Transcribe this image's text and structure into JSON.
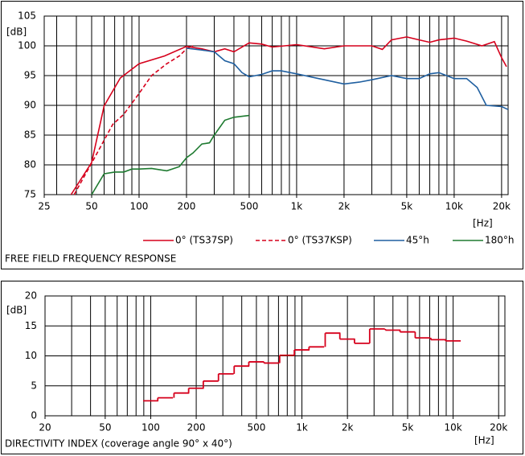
{
  "chart_data": [
    {
      "type": "line",
      "title": "FREE FIELD FREQUENCY RESPONSE",
      "ylabel": "[dB]",
      "xlabel": "[Hz]",
      "xscale": "log",
      "xlim": [
        25,
        22000
      ],
      "ylim": [
        75,
        105
      ],
      "xticks": [
        25,
        50,
        100,
        200,
        500,
        {
          "value": 1000,
          "label": "1k"
        },
        {
          "value": 2000,
          "label": "2k"
        },
        {
          "value": 5000,
          "label": "5k"
        },
        {
          "value": 10000,
          "label": "10k"
        },
        {
          "value": 20000,
          "label": "20k"
        }
      ],
      "xgrid": [
        30,
        40,
        50,
        60,
        70,
        80,
        90,
        100,
        200,
        300,
        400,
        500,
        600,
        700,
        800,
        900,
        1000,
        2000,
        3000,
        4000,
        5000,
        6000,
        7000,
        8000,
        9000,
        10000,
        20000
      ],
      "yticks": [
        75,
        80,
        85,
        90,
        95,
        100,
        105
      ],
      "grid": true,
      "series": [
        {
          "name": "0° (TS37SP)",
          "color": "#d6001c",
          "dash": false,
          "x": [
            37,
            50,
            60,
            76,
            100,
            145,
            200,
            250,
            300,
            350,
            400,
            500,
            600,
            700,
            1000,
            1500,
            2000,
            3000,
            3500,
            4000,
            5000,
            6000,
            7000,
            8000,
            10000,
            12000,
            15000,
            18000,
            20000,
            21500
          ],
          "values": [
            75,
            80.4,
            89.9,
            94.6,
            97,
            98.3,
            99.9,
            99.5,
            99,
            99.5,
            99,
            100.5,
            100.3,
            99.8,
            100.2,
            99.5,
            100,
            100,
            99.4,
            101,
            101.5,
            101,
            100.6,
            101,
            101.3,
            100.8,
            100,
            100.7,
            98,
            96.5
          ]
        },
        {
          "name": "0° (TS37KSP)",
          "color": "#d6001c",
          "dash": true,
          "x": [
            38.7,
            50,
            68,
            80,
            100,
            120,
            150,
            180,
            200,
            220
          ],
          "values": [
            75,
            80.3,
            86.8,
            88.5,
            92,
            95,
            97,
            98.3,
            99.5,
            100
          ]
        },
        {
          "name": "45°h",
          "color": "#1f5fa0",
          "dash": false,
          "x": [
            200,
            250,
            300,
            350,
            400,
            450,
            500,
            600,
            700,
            800,
            1000,
            1500,
            2000,
            2500,
            3000,
            4000,
            5000,
            6000,
            7000,
            8000,
            10000,
            12000,
            14000,
            16000,
            20000,
            22000
          ],
          "values": [
            99.6,
            99.3,
            99,
            97.5,
            97,
            95.5,
            94.8,
            95.2,
            95.8,
            95.8,
            95.3,
            94.3,
            93.6,
            93.9,
            94.3,
            95,
            94.5,
            94.5,
            95.3,
            95.5,
            94.5,
            94.5,
            93,
            90,
            89.8,
            89.3
          ]
        },
        {
          "name": "180°h",
          "color": "#1e7a30",
          "dash": false,
          "x": [
            50,
            60,
            70,
            80,
            90,
            100,
            120,
            150,
            180,
            200,
            220,
            250,
            280,
            300,
            350,
            400,
            500
          ],
          "values": [
            75,
            78.5,
            78.8,
            78.8,
            79.3,
            79.3,
            79.4,
            79,
            79.7,
            81.2,
            82,
            83.5,
            83.7,
            85,
            87.5,
            88,
            88.3
          ]
        }
      ]
    },
    {
      "type": "step",
      "title": "DIRECTIVITY INDEX (coverage angle 90° x 40°)",
      "ylabel": "[dB]",
      "xlabel": "[Hz]",
      "xscale": "log",
      "xlim": [
        20,
        22000
      ],
      "ylim": [
        0,
        20
      ],
      "xticks": [
        20,
        50,
        100,
        200,
        500,
        {
          "value": 1000,
          "label": "1k"
        },
        {
          "value": 2000,
          "label": "2k"
        },
        {
          "value": 5000,
          "label": "5k"
        },
        {
          "value": 10000,
          "label": "10k"
        },
        {
          "value": 20000,
          "label": "20k"
        }
      ],
      "xgrid": [
        30,
        40,
        50,
        60,
        70,
        80,
        90,
        100,
        200,
        300,
        400,
        500,
        600,
        700,
        800,
        900,
        1000,
        2000,
        3000,
        4000,
        5000,
        6000,
        7000,
        8000,
        9000,
        10000,
        20000
      ],
      "yticks": [
        0,
        5,
        10,
        15,
        20
      ],
      "grid": true,
      "color": "#d6001c",
      "x": [
        100,
        125,
        160,
        200,
        250,
        315,
        400,
        500,
        630,
        800,
        1000,
        1250,
        1600,
        2000,
        2500,
        3150,
        4000,
        5000,
        6300,
        8000,
        10000
      ],
      "values": [
        2.5,
        3.0,
        3.8,
        4.6,
        5.8,
        7.0,
        8.3,
        9.0,
        8.8,
        10.1,
        11.0,
        11.5,
        13.8,
        12.8,
        12.1,
        14.5,
        14.3,
        14.0,
        13.0,
        12.7,
        12.5
      ]
    }
  ]
}
